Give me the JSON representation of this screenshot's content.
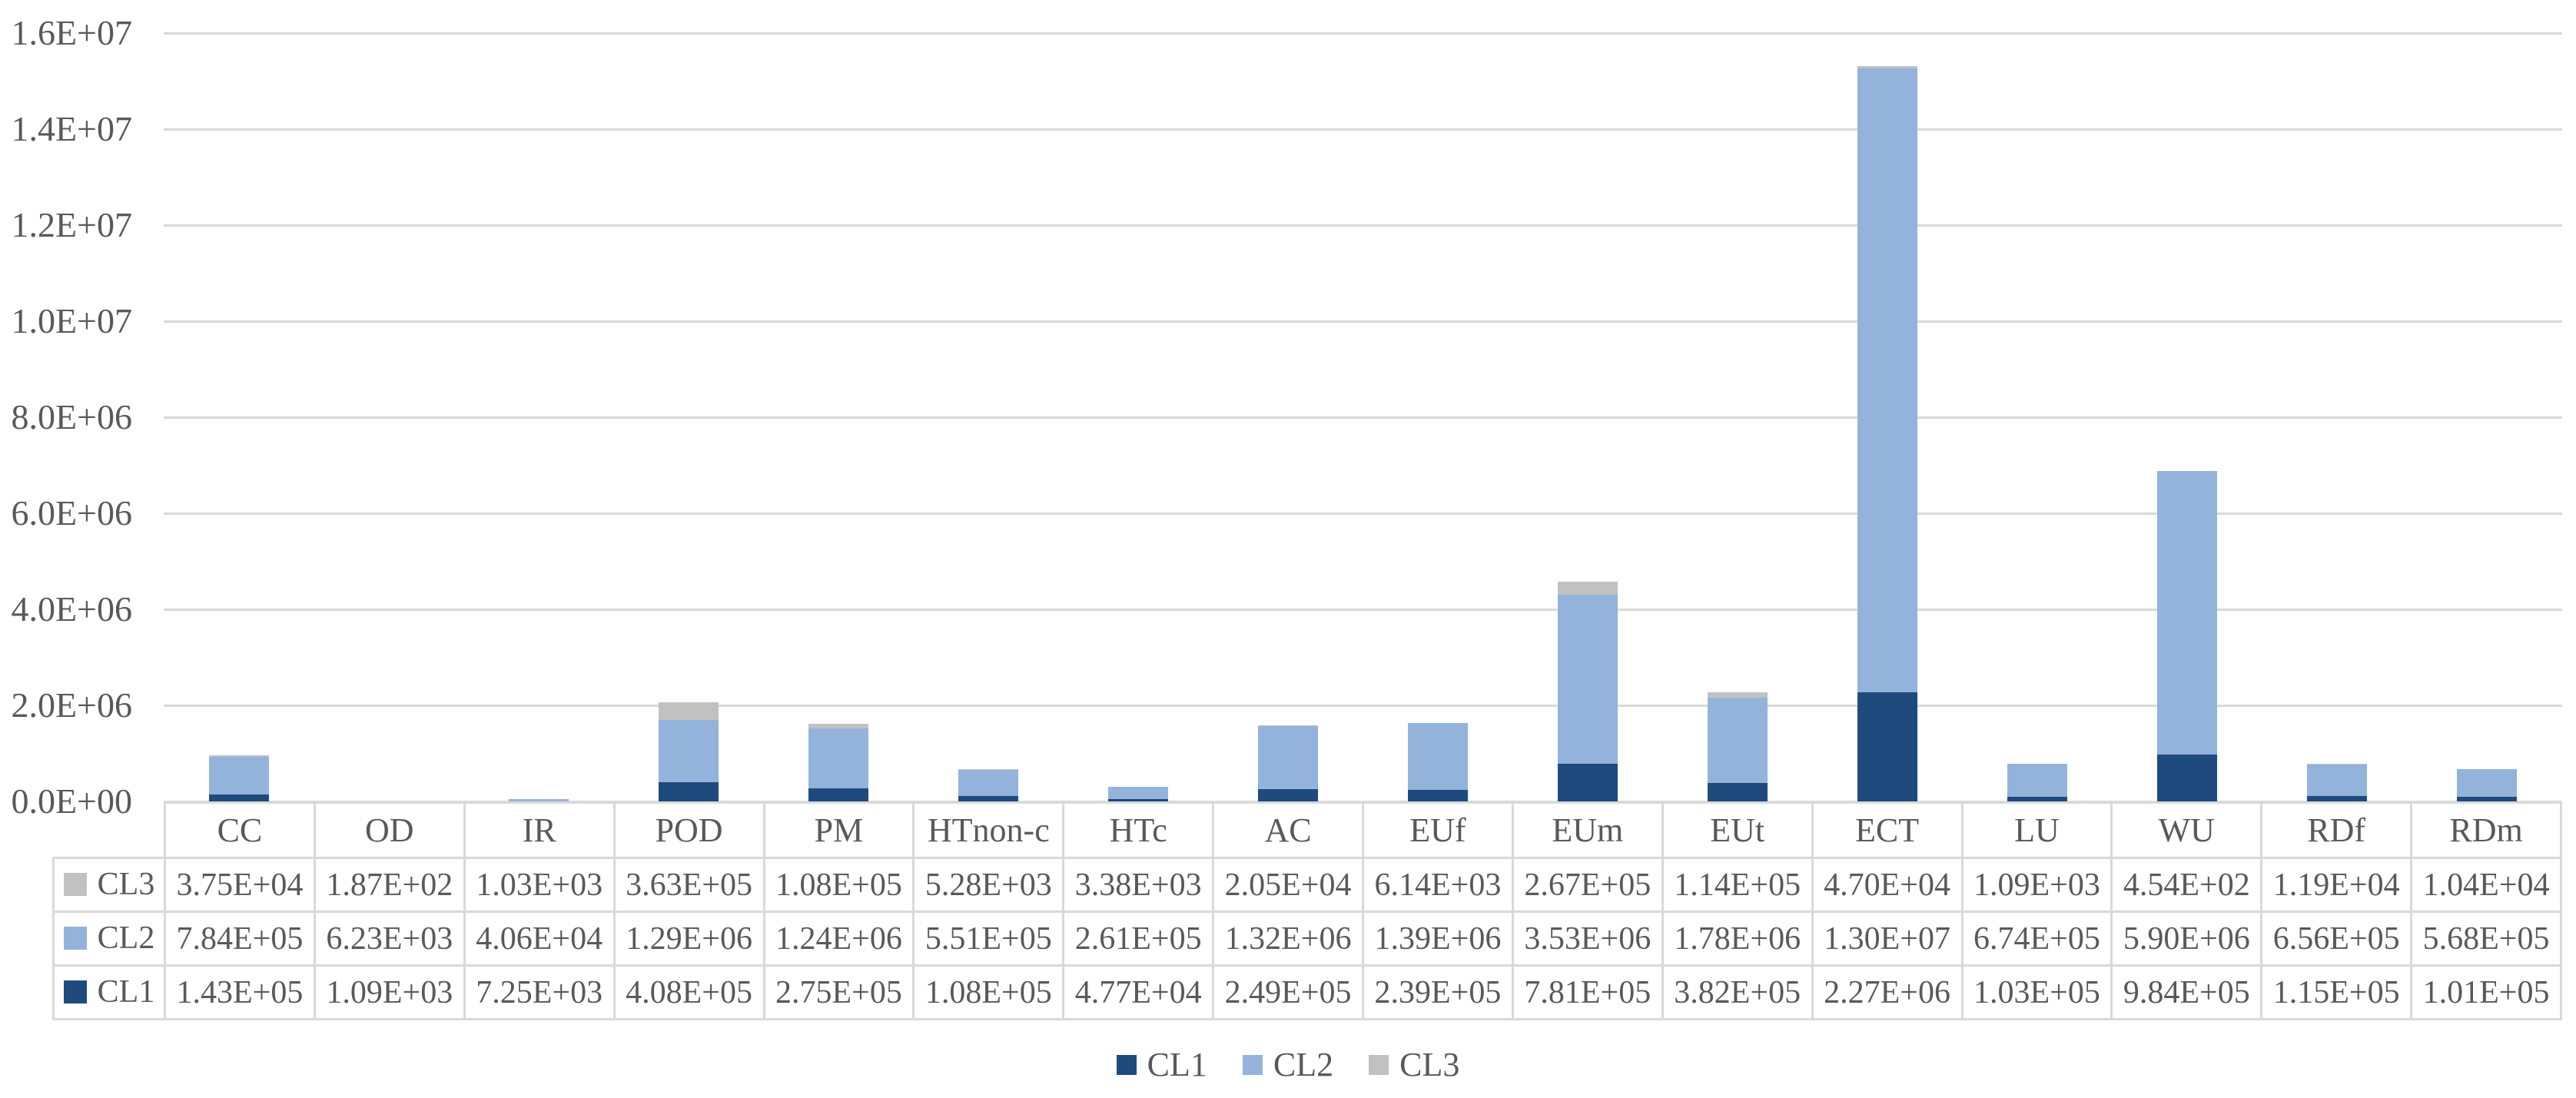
{
  "colors": {
    "background": "#FFFFFF",
    "text": "#595959",
    "gridline": "#D9D9D9",
    "table_border": "#D9D9D9",
    "cl1": "#1F4A7E",
    "cl2": "#94B3DB",
    "cl3": "#C1C1C1"
  },
  "chart_data": {
    "type": "bar",
    "stacked": true,
    "title": "",
    "xlabel": "",
    "ylabel": "",
    "grid": true,
    "legend_position": "bottom",
    "legend_order": [
      "CL1",
      "CL2",
      "CL3"
    ],
    "table_row_order": [
      "CL3",
      "CL2",
      "CL1"
    ],
    "y_axis": {
      "min": 0,
      "max": 16000000,
      "tick_step": 2000000,
      "tick_labels_bottom_up": [
        "0.0E+00",
        "2.0E+06",
        "4.0E+06",
        "6.0E+06",
        "8.0E+06",
        "1.0E+07",
        "1.2E+07",
        "1.4E+07",
        "1.6E+07"
      ]
    },
    "categories": [
      "CC",
      "OD",
      "IR",
      "POD",
      "PM",
      "HTnon-c",
      "HTc",
      "AC",
      "EUf",
      "EUm",
      "EUt",
      "ECT",
      "LU",
      "WU",
      "RDf",
      "RDm"
    ],
    "series": [
      {
        "name": "CL1",
        "color_key": "cl1",
        "stack_index": 0,
        "values": [
          "1.43E+05",
          "1.09E+03",
          "7.25E+03",
          "4.08E+05",
          "2.75E+05",
          "1.08E+05",
          "4.77E+04",
          "2.49E+05",
          "2.39E+05",
          "7.81E+05",
          "3.82E+05",
          "2.27E+06",
          "1.03E+05",
          "9.84E+05",
          "1.15E+05",
          "1.01E+05"
        ]
      },
      {
        "name": "CL2",
        "color_key": "cl2",
        "stack_index": 1,
        "values": [
          "7.84E+05",
          "6.23E+03",
          "4.06E+04",
          "1.29E+06",
          "1.24E+06",
          "5.51E+05",
          "2.61E+05",
          "1.32E+06",
          "1.39E+06",
          "3.53E+06",
          "1.78E+06",
          "1.30E+07",
          "6.74E+05",
          "5.90E+06",
          "6.56E+05",
          "5.68E+05"
        ]
      },
      {
        "name": "CL3",
        "color_key": "cl3",
        "stack_index": 2,
        "values": [
          "3.75E+04",
          "1.87E+02",
          "1.03E+03",
          "3.63E+05",
          "1.08E+05",
          "5.28E+03",
          "3.38E+03",
          "2.05E+04",
          "6.14E+03",
          "2.67E+05",
          "1.14E+05",
          "4.70E+04",
          "1.09E+03",
          "4.54E+02",
          "1.19E+04",
          "1.04E+04"
        ]
      }
    ]
  }
}
